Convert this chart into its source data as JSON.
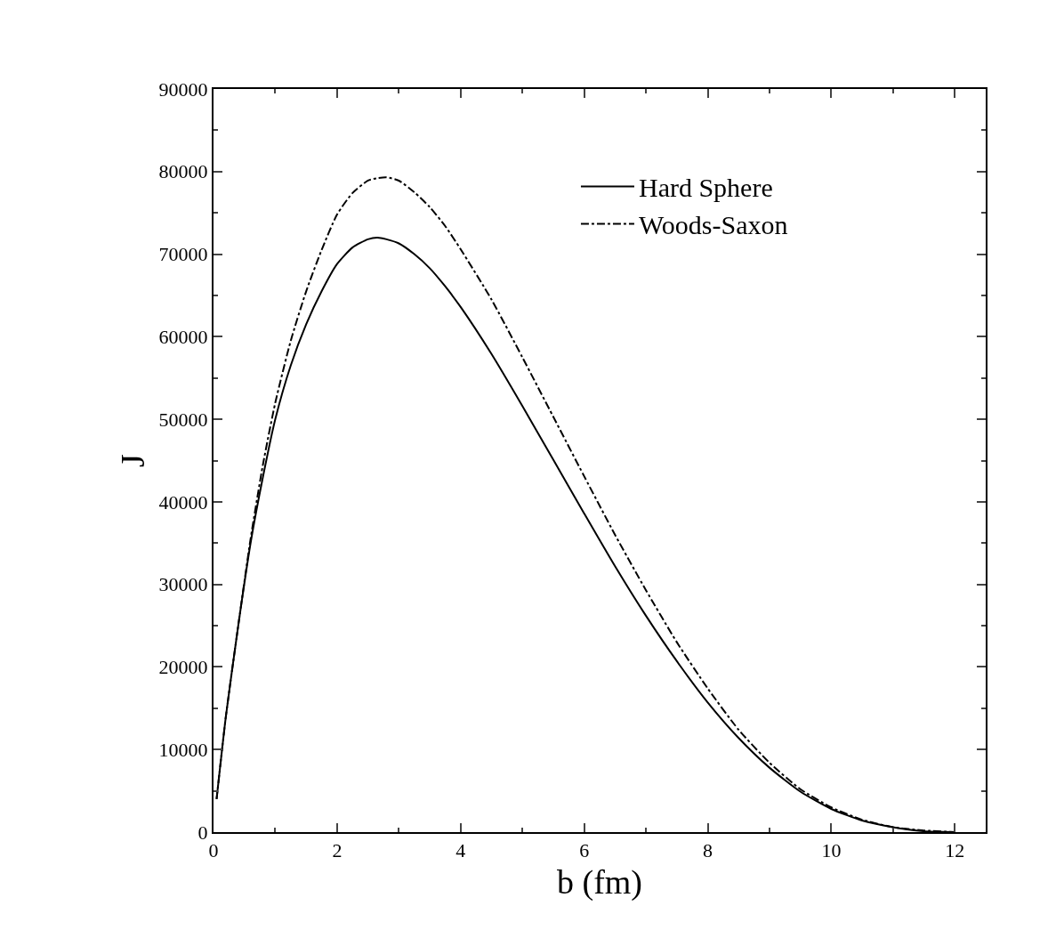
{
  "chart_data": {
    "type": "line",
    "xlabel": "b (fm)",
    "ylabel": "J",
    "x": [
      0.05,
      0.2,
      0.4,
      0.6,
      0.8,
      1,
      1.25,
      1.5,
      1.75,
      2,
      2.25,
      2.5,
      2.65,
      2.8,
      3,
      3.25,
      3.5,
      3.75,
      4,
      4.5,
      5,
      5.5,
      6,
      6.5,
      7,
      7.5,
      8,
      8.5,
      9,
      9.5,
      10,
      10.5,
      11,
      11.5,
      12
    ],
    "series": [
      {
        "name": "Hard Sphere",
        "color": "#000000",
        "line_style": "solid",
        "values": [
          4000,
          14000,
          25000,
          35000,
          43000,
          50000,
          56500,
          61500,
          65500,
          68800,
          70800,
          71800,
          72000,
          71800,
          71300,
          70000,
          68300,
          66100,
          63600,
          57900,
          51600,
          45100,
          38600,
          32200,
          26200,
          20700,
          15700,
          11400,
          7800,
          4900,
          2800,
          1400,
          600,
          100,
          0
        ]
      },
      {
        "name": "Woods-Saxon",
        "color": "#000000",
        "line_style": "dashdot",
        "values": [
          4000,
          14000,
          25000,
          35500,
          44500,
          52000,
          59500,
          65500,
          70500,
          74800,
          77400,
          78900,
          79200,
          79300,
          78900,
          77500,
          75700,
          73400,
          70600,
          64500,
          57500,
          50300,
          43100,
          36000,
          29300,
          23000,
          17400,
          12400,
          8400,
          5200,
          3000,
          1500,
          600,
          200,
          0
        ]
      }
    ],
    "xlim": [
      0,
      12.5
    ],
    "xticks": [
      0,
      2,
      4,
      6,
      8,
      10,
      12
    ],
    "ylim": [
      0,
      90000
    ],
    "yticks": [
      0,
      10000,
      20000,
      30000,
      40000,
      50000,
      60000,
      70000,
      80000,
      90000
    ],
    "grid": false,
    "legend": "top right"
  }
}
